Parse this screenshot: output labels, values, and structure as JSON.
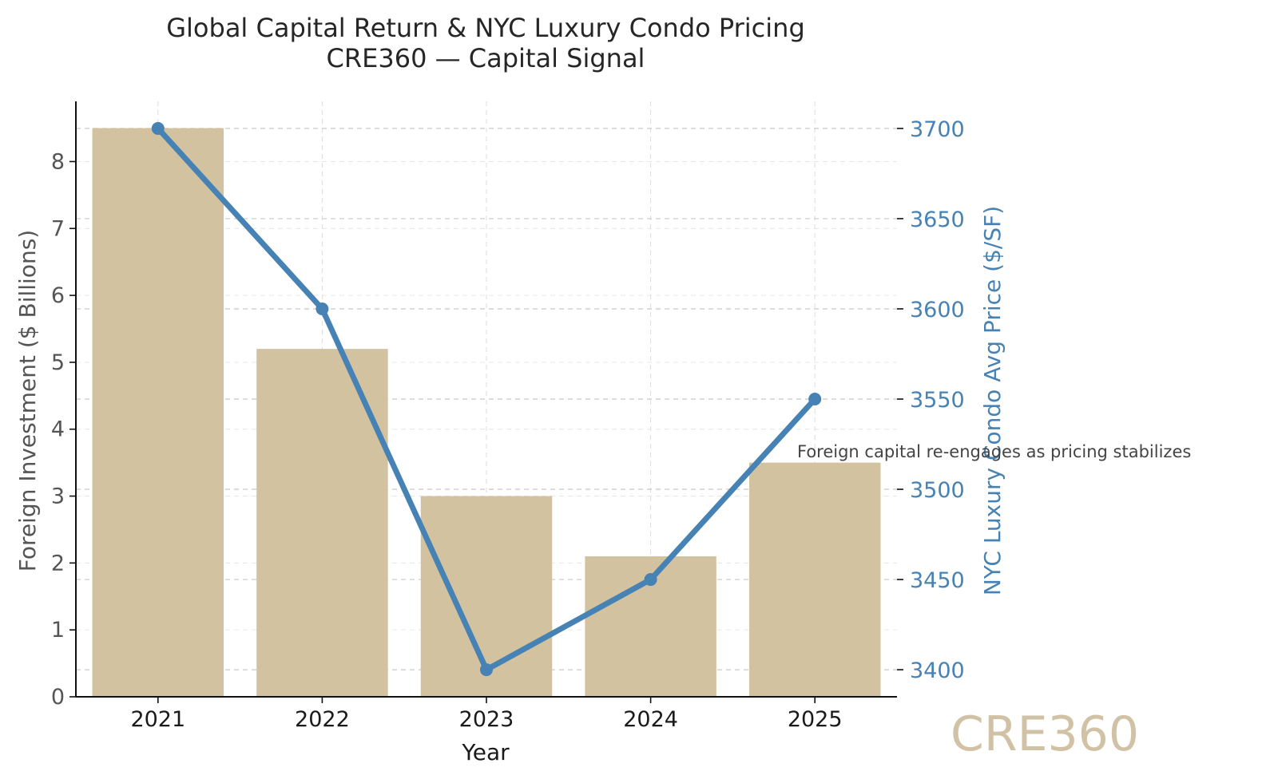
{
  "chart_data": {
    "type": "bar+line",
    "title": "Global Capital Return & NYC Luxury Condo Pricing",
    "subtitle": "CRE360 — Capital Signal",
    "xlabel": "Year",
    "ylabel_left": "Foreign Investment ($ Billions)",
    "ylabel_right": "NYC Luxury Condo Avg Price ($/SF)",
    "categories": [
      "2021",
      "2022",
      "2023",
      "2024",
      "2025"
    ],
    "series": [
      {
        "kind": "bar",
        "axis": "left",
        "values": [
          8.5,
          5.2,
          3.0,
          2.1,
          3.5
        ],
        "color": "#d2c2a0"
      },
      {
        "kind": "line",
        "axis": "right",
        "values": [
          3700,
          3600,
          3400,
          3450,
          3550
        ],
        "color": "#4682b4"
      }
    ],
    "ylim_left": [
      0,
      8.9
    ],
    "ylim_right": [
      3385,
      3715
    ],
    "yticks_left": [
      "0",
      "1",
      "2",
      "3",
      "4",
      "5",
      "6",
      "7",
      "8"
    ],
    "yticks_right": [
      "3400",
      "3450",
      "3500",
      "3550",
      "3600",
      "3650",
      "3700"
    ],
    "grid": true,
    "annotation": "Foreign capital re-engages as pricing stabilizes",
    "watermark": "CRE360",
    "colors": {
      "bar": "#d2c2a0",
      "line": "#4682b4",
      "watermark": "#d2c2a5"
    }
  }
}
